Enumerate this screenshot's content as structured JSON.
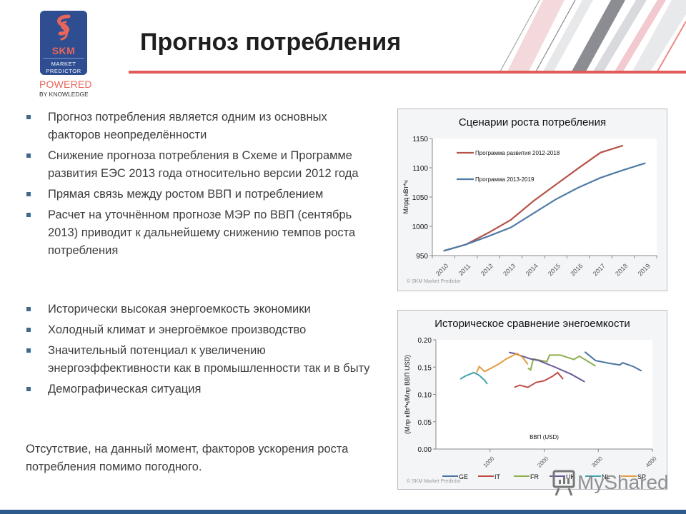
{
  "logo": {
    "brand": "SKM",
    "line1": "MARKET",
    "line2": "PREDICTOR",
    "tagline1": "POWERED",
    "tagline2": "BY KNOWLEDGE"
  },
  "header": {
    "title": "Прогноз потребления"
  },
  "bullets_group1": [
    "Прогноз потребления является одним из основных факторов неопределённости",
    "Снижение прогноза потребления в Схеме и Программе развития ЕЭС 2013 года относительно версии 2012 года",
    "Прямая связь между ростом ВВП и потреблением",
    "Расчет  на уточнённом прогнозе МЭР по ВВП (сентябрь 2013) приводит к дальнейшему снижению темпов роста потребления"
  ],
  "bullets_group2": [
    "Исторически высокая энергоемкость экономики",
    "Холодный климат и энергоёмкое производство",
    "Значительный потенциал к увеличению энергоэффективности как в промышленности так и в быту",
    "Демографическая ситуация"
  ],
  "conclusion": "Отсутствие, на данный момент, факторов ускорения роста потребления помимо погодного.",
  "watermark": "MyShared",
  "colors": {
    "accent_red": "#e25a57",
    "logo_blue": "#2f4e92",
    "bottom_bar": "#2d5a8a",
    "bullet": "#3f6a8e"
  },
  "chart_data": [
    {
      "type": "line",
      "title": "Сценарии роста потребления",
      "xlabel": "",
      "ylabel": "Млрд кВт*ч",
      "x": [
        "2010",
        "2011",
        "2012",
        "2013",
        "2014",
        "2015",
        "2016",
        "2017",
        "2018",
        "2019"
      ],
      "ylim": [
        950,
        1150
      ],
      "yticks": [
        "1150",
        "1100",
        "1050",
        "1000",
        "950"
      ],
      "grid": false,
      "legend_position": "inside-top-left",
      "series": [
        {
          "name": "Программа развития 2012-2018",
          "color": "#b5534a",
          "values": [
            958,
            969,
            989,
            1011,
            1043,
            1071,
            1099,
            1126,
            1138,
            null
          ]
        },
        {
          "name": "Программа 2013-2019",
          "color": "#4f7ba6",
          "values": [
            958,
            969,
            983,
            998,
            1022,
            1046,
            1066,
            1083,
            1096,
            1108
          ]
        }
      ],
      "copyright": "© SKM Market Predictor"
    },
    {
      "type": "line",
      "title": "Историческое сравнение энегоемкости",
      "xlabel": "ВВП (USD)",
      "ylabel": "(Млр кВт*ч/Млр ВВП USD)",
      "ylim": [
        0.0,
        0.2
      ],
      "xlim": [
        0,
        4000
      ],
      "yticks": [
        "0.20",
        "0.15",
        "0.10",
        "0.05",
        "0.00"
      ],
      "xticks": [
        "1000",
        "2000",
        "3000",
        "4000"
      ],
      "grid": false,
      "legend_position": "bottom",
      "series": [
        {
          "name": "GE",
          "color": "#4a74a0",
          "points": [
            [
              2750,
              0.178
            ],
            [
              2950,
              0.162
            ],
            [
              3200,
              0.157
            ],
            [
              3400,
              0.154
            ],
            [
              3450,
              0.158
            ],
            [
              3650,
              0.151
            ],
            [
              3800,
              0.143
            ]
          ]
        },
        {
          "name": "IT",
          "color": "#c14b47",
          "points": [
            [
              1450,
              0.113
            ],
            [
              1550,
              0.117
            ],
            [
              1700,
              0.113
            ],
            [
              1850,
              0.122
            ],
            [
              2000,
              0.125
            ],
            [
              2150,
              0.133
            ],
            [
              2250,
              0.14
            ],
            [
              2350,
              0.128
            ]
          ]
        },
        {
          "name": "FR",
          "color": "#8faf4e",
          "points": [
            [
              1700,
              0.148
            ],
            [
              1750,
              0.145
            ],
            [
              1800,
              0.165
            ],
            [
              2050,
              0.16
            ],
            [
              2100,
              0.172
            ],
            [
              2300,
              0.172
            ],
            [
              2550,
              0.164
            ],
            [
              2650,
              0.17
            ],
            [
              2950,
              0.152
            ]
          ]
        },
        {
          "name": "UK",
          "color": "#6a5a9a",
          "points": [
            [
              1350,
              0.177
            ],
            [
              1450,
              0.175
            ],
            [
              1750,
              0.165
            ],
            [
              1900,
              0.162
            ],
            [
              2200,
              0.15
            ],
            [
              2500,
              0.137
            ],
            [
              2750,
              0.123
            ]
          ]
        },
        {
          "name": "NL",
          "color": "#3fa3b0",
          "points": [
            [
              450,
              0.128
            ],
            [
              550,
              0.134
            ],
            [
              700,
              0.14
            ],
            [
              800,
              0.135
            ],
            [
              900,
              0.126
            ],
            [
              950,
              0.119
            ]
          ]
        },
        {
          "name": "SP",
          "color": "#e59b3f",
          "points": [
            [
              750,
              0.14
            ],
            [
              800,
              0.151
            ],
            [
              900,
              0.142
            ],
            [
              1000,
              0.147
            ],
            [
              1150,
              0.155
            ],
            [
              1300,
              0.165
            ],
            [
              1500,
              0.175
            ],
            [
              1600,
              0.168
            ],
            [
              1700,
              0.155
            ]
          ]
        }
      ],
      "copyright": "© SKM Market Predictor"
    }
  ]
}
